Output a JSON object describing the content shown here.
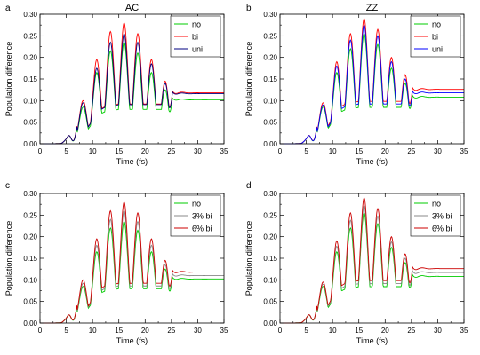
{
  "chart_data": [
    {
      "type": "line",
      "panel_label": "a",
      "title": "AC",
      "xlabel": "Time (fs)",
      "ylabel": "Population difference",
      "xlim": [
        0,
        35
      ],
      "ylim": [
        0,
        0.3
      ],
      "xticks": [
        "0",
        "5",
        "10",
        "15",
        "20",
        "25",
        "30",
        "35"
      ],
      "yticks": [
        "0.00",
        "0.05",
        "0.10",
        "0.15",
        "0.20",
        "0.25",
        "0.30"
      ],
      "legend_position": "top-right",
      "grid": false,
      "series": [
        {
          "name": "no",
          "color": "#00cc00",
          "peaks": [
            0.085,
            0.165,
            0.215,
            0.235,
            0.21,
            0.165,
            0.125
          ],
          "final": 0.102
        },
        {
          "name": "bi",
          "color": "#ff0000",
          "peaks": [
            0.1,
            0.195,
            0.26,
            0.28,
            0.255,
            0.195,
            0.145
          ],
          "final": 0.118
        },
        {
          "name": "uni",
          "color": "#000080",
          "peaks": [
            0.095,
            0.175,
            0.235,
            0.255,
            0.235,
            0.185,
            0.14
          ],
          "final": 0.116
        }
      ]
    },
    {
      "type": "line",
      "panel_label": "b",
      "title": "ZZ",
      "xlabel": "Time (fs)",
      "ylabel": "Population difference",
      "xlim": [
        0,
        35
      ],
      "ylim": [
        0,
        0.3
      ],
      "xticks": [
        "0",
        "5",
        "10",
        "15",
        "20",
        "25",
        "30",
        "35"
      ],
      "yticks": [
        "0.00",
        "0.05",
        "0.10",
        "0.15",
        "0.20",
        "0.25",
        "0.30"
      ],
      "legend_position": "top-right",
      "grid": false,
      "series": [
        {
          "name": "no",
          "color": "#00cc00",
          "peaks": [
            0.085,
            0.165,
            0.22,
            0.255,
            0.23,
            0.175,
            0.14
          ],
          "final": 0.108
        },
        {
          "name": "bi",
          "color": "#ff0000",
          "peaks": [
            0.095,
            0.19,
            0.255,
            0.29,
            0.265,
            0.2,
            0.16
          ],
          "final": 0.126
        },
        {
          "name": "uni",
          "color": "#0000ff",
          "peaks": [
            0.09,
            0.18,
            0.24,
            0.275,
            0.25,
            0.19,
            0.15
          ],
          "final": 0.118
        }
      ]
    },
    {
      "type": "line",
      "panel_label": "c",
      "title": "",
      "xlabel": "Time (fs)",
      "ylabel": "Population difference",
      "xlim": [
        0,
        35
      ],
      "ylim": [
        0,
        0.3
      ],
      "xticks": [
        "0",
        "5",
        "10",
        "15",
        "20",
        "25",
        "30",
        "35"
      ],
      "yticks": [
        "0.00",
        "0.05",
        "0.10",
        "0.15",
        "0.20",
        "0.25",
        "0.30"
      ],
      "legend_position": "top-right",
      "grid": false,
      "series": [
        {
          "name": "no",
          "color": "#00cc00",
          "peaks": [
            0.085,
            0.165,
            0.22,
            0.235,
            0.215,
            0.165,
            0.125
          ],
          "final": 0.102
        },
        {
          "name": "3% bi",
          "color": "#888888",
          "peaks": [
            0.092,
            0.18,
            0.24,
            0.26,
            0.235,
            0.18,
            0.135
          ],
          "final": 0.11
        },
        {
          "name": "6% bi",
          "color": "#cc0000",
          "peaks": [
            0.1,
            0.195,
            0.26,
            0.28,
            0.255,
            0.195,
            0.145
          ],
          "final": 0.118
        }
      ]
    },
    {
      "type": "line",
      "panel_label": "d",
      "title": "",
      "xlabel": "Time (fs)",
      "ylabel": "Population difference",
      "xlim": [
        0,
        35
      ],
      "ylim": [
        0,
        0.3
      ],
      "xticks": [
        "0",
        "5",
        "10",
        "15",
        "20",
        "25",
        "30",
        "35"
      ],
      "yticks": [
        "0.00",
        "0.05",
        "0.10",
        "0.15",
        "0.20",
        "0.25",
        "0.30"
      ],
      "legend_position": "top-right",
      "grid": false,
      "series": [
        {
          "name": "no",
          "color": "#00cc00",
          "peaks": [
            0.085,
            0.165,
            0.22,
            0.255,
            0.23,
            0.175,
            0.14
          ],
          "final": 0.108
        },
        {
          "name": "3% bi",
          "color": "#888888",
          "peaks": [
            0.09,
            0.178,
            0.238,
            0.272,
            0.248,
            0.188,
            0.15
          ],
          "final": 0.117
        },
        {
          "name": "6% bi",
          "color": "#cc0000",
          "peaks": [
            0.095,
            0.19,
            0.255,
            0.29,
            0.265,
            0.2,
            0.16
          ],
          "final": 0.126
        }
      ]
    }
  ]
}
